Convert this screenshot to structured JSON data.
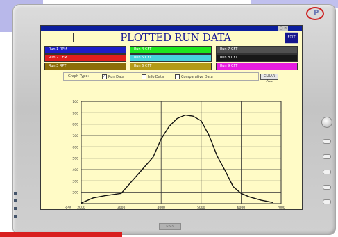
{
  "window": {
    "title": "PLOTTED RUN DATA",
    "exit_label": "EXIT",
    "window_controls_label": "□ ×"
  },
  "logo_glyph": "P",
  "bottom_label": "~~~",
  "runs": [
    {
      "label": "Run 1 RPM",
      "bg": "#1e1ec8",
      "fg": "#ffffff"
    },
    {
      "label": "Run 2 CFM",
      "bg": "#e01e1e",
      "fg": "#ffffff"
    },
    {
      "label": "Run 3 RPT",
      "bg": "#8c6e08",
      "fg": "#ffffff"
    },
    {
      "label": "Run 4 CFT",
      "bg": "#1ee61e",
      "fg": "#ffffff"
    },
    {
      "label": "Run 5 CFT",
      "bg": "#46d2dc",
      "fg": "#ffffff"
    },
    {
      "label": "Run 6 CFT",
      "bg": "#b49a18",
      "fg": "#ffffff"
    },
    {
      "label": "Run 7 CFT",
      "bg": "#505050",
      "fg": "#ffffff"
    },
    {
      "label": "Run 8 CFT",
      "bg": "#181818",
      "fg": "#ffffff"
    },
    {
      "label": "Run 9 CFT",
      "bg": "#e81ee0",
      "fg": "#ffffff"
    }
  ],
  "graph_type": {
    "label": "Graph Type:",
    "options": [
      {
        "label": "Run Data",
        "checked": true
      },
      {
        "label": "Info Data",
        "checked": false
      },
      {
        "label": "Comparative Data",
        "checked": false
      }
    ],
    "clear_all_label": "CLEAR ALL"
  },
  "chart_data": {
    "type": "line",
    "xlabel": "RPM",
    "ylabel": "",
    "xlim": [
      2000,
      7000
    ],
    "ylim": [
      1000,
      10000
    ],
    "x_ticks": [
      "2000",
      "3000",
      "4000",
      "5000",
      "6000",
      "7000"
    ],
    "y_ticks": [
      "100",
      "900",
      "800",
      "700",
      "600",
      "500",
      "400",
      "300",
      "200"
    ],
    "series": [
      {
        "color": "#111111",
        "x": [
          2000,
          2300,
          2600,
          3000,
          3200,
          3500,
          3800,
          4000,
          4200,
          4400,
          4600,
          4800,
          5000,
          5200,
          5400,
          5600,
          5800,
          6000,
          6200,
          6500,
          6800
        ],
        "y": [
          1050,
          1500,
          1700,
          1900,
          2700,
          3900,
          5100,
          6700,
          7800,
          8500,
          8800,
          8700,
          8300,
          7000,
          5200,
          3900,
          2500,
          1900,
          1600,
          1300,
          1100
        ]
      }
    ]
  }
}
